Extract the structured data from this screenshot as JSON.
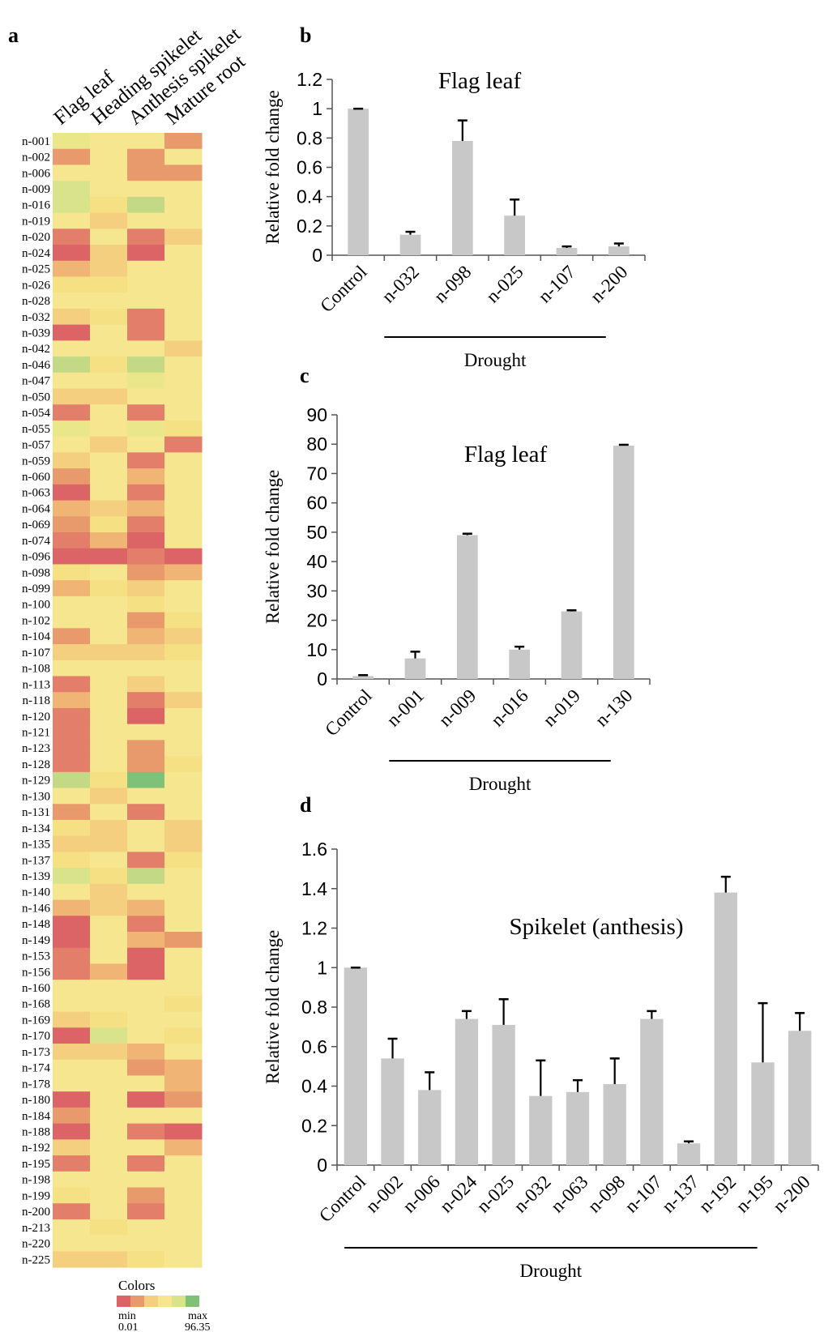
{
  "panels": {
    "a": "a",
    "b": "b",
    "c": "c",
    "d": "d"
  },
  "heatmap": {
    "columns": [
      "Flag leaf",
      "Heading spikelet",
      "Anthesis spikelet",
      "Mature root"
    ],
    "palette": [
      "#f6e68f",
      "#f5e084",
      "#f3cf7f",
      "#f0b575",
      "#e99a6c",
      "#e37e6a",
      "#dc6366",
      "#e9e78a",
      "#d9e38c",
      "#c4d985",
      "#7fc178"
    ],
    "rows": [
      {
        "label": "n-001",
        "v": [
          7,
          0,
          0,
          4
        ]
      },
      {
        "label": "n-002",
        "v": [
          4,
          0,
          4,
          0
        ]
      },
      {
        "label": "n-006",
        "v": [
          0,
          0,
          4,
          4
        ]
      },
      {
        "label": "n-009",
        "v": [
          8,
          0,
          0,
          0
        ]
      },
      {
        "label": "n-016",
        "v": [
          8,
          1,
          9,
          0
        ]
      },
      {
        "label": "n-019",
        "v": [
          0,
          2,
          0,
          0
        ]
      },
      {
        "label": "n-020",
        "v": [
          5,
          0,
          5,
          2
        ]
      },
      {
        "label": "n-024",
        "v": [
          6,
          2,
          6,
          0
        ]
      },
      {
        "label": "n-025",
        "v": [
          3,
          2,
          0,
          0
        ]
      },
      {
        "label": "n-026",
        "v": [
          1,
          1,
          0,
          0
        ]
      },
      {
        "label": "n-028",
        "v": [
          0,
          0,
          0,
          0
        ]
      },
      {
        "label": "n-032",
        "v": [
          2,
          1,
          5,
          0
        ]
      },
      {
        "label": "n-039",
        "v": [
          6,
          0,
          5,
          0
        ]
      },
      {
        "label": "n-042",
        "v": [
          0,
          0,
          0,
          2
        ]
      },
      {
        "label": "n-046",
        "v": [
          9,
          1,
          9,
          0
        ]
      },
      {
        "label": "n-047",
        "v": [
          0,
          0,
          7,
          0
        ]
      },
      {
        "label": "n-050",
        "v": [
          2,
          2,
          0,
          0
        ]
      },
      {
        "label": "n-054",
        "v": [
          5,
          0,
          5,
          0
        ]
      },
      {
        "label": "n-055",
        "v": [
          7,
          0,
          7,
          1
        ]
      },
      {
        "label": "n-057",
        "v": [
          0,
          2,
          0,
          5
        ]
      },
      {
        "label": "n-059",
        "v": [
          2,
          0,
          5,
          0
        ]
      },
      {
        "label": "n-060",
        "v": [
          4,
          0,
          3,
          0
        ]
      },
      {
        "label": "n-063",
        "v": [
          6,
          0,
          5,
          0
        ]
      },
      {
        "label": "n-064",
        "v": [
          3,
          2,
          3,
          0
        ]
      },
      {
        "label": "n-069",
        "v": [
          4,
          1,
          5,
          0
        ]
      },
      {
        "label": "n-074",
        "v": [
          5,
          3,
          6,
          0
        ]
      },
      {
        "label": "n-096",
        "v": [
          6,
          6,
          5,
          6
        ]
      },
      {
        "label": "n-098",
        "v": [
          1,
          0,
          4,
          3
        ]
      },
      {
        "label": "n-099",
        "v": [
          3,
          1,
          2,
          0
        ]
      },
      {
        "label": "n-100",
        "v": [
          0,
          0,
          1,
          0
        ]
      },
      {
        "label": "n-102",
        "v": [
          0,
          0,
          4,
          1
        ]
      },
      {
        "label": "n-104",
        "v": [
          4,
          0,
          3,
          2
        ]
      },
      {
        "label": "n-107",
        "v": [
          2,
          2,
          2,
          1
        ]
      },
      {
        "label": "n-108",
        "v": [
          0,
          0,
          0,
          0
        ]
      },
      {
        "label": "n-113",
        "v": [
          5,
          0,
          2,
          0
        ]
      },
      {
        "label": "n-118",
        "v": [
          3,
          0,
          5,
          2
        ]
      },
      {
        "label": "n-120",
        "v": [
          5,
          0,
          6,
          0
        ]
      },
      {
        "label": "n-121",
        "v": [
          5,
          0,
          0,
          0
        ]
      },
      {
        "label": "n-123",
        "v": [
          5,
          0,
          4,
          0
        ]
      },
      {
        "label": "n-128",
        "v": [
          5,
          0,
          4,
          1
        ]
      },
      {
        "label": "n-129",
        "v": [
          9,
          1,
          10,
          0
        ]
      },
      {
        "label": "n-130",
        "v": [
          0,
          2,
          0,
          0
        ]
      },
      {
        "label": "n-131",
        "v": [
          4,
          0,
          5,
          0
        ]
      },
      {
        "label": "n-134",
        "v": [
          1,
          2,
          0,
          2
        ]
      },
      {
        "label": "n-135",
        "v": [
          2,
          2,
          0,
          2
        ]
      },
      {
        "label": "n-137",
        "v": [
          1,
          0,
          5,
          1
        ]
      },
      {
        "label": "n-139",
        "v": [
          8,
          1,
          9,
          0
        ]
      },
      {
        "label": "n-140",
        "v": [
          0,
          2,
          0,
          0
        ]
      },
      {
        "label": "n-146",
        "v": [
          3,
          2,
          3,
          0
        ]
      },
      {
        "label": "n-148",
        "v": [
          6,
          0,
          5,
          0
        ]
      },
      {
        "label": "n-149",
        "v": [
          6,
          0,
          3,
          4
        ]
      },
      {
        "label": "n-153",
        "v": [
          5,
          0,
          6,
          0
        ]
      },
      {
        "label": "n-156",
        "v": [
          5,
          3,
          6,
          0
        ]
      },
      {
        "label": "n-160",
        "v": [
          0,
          0,
          0,
          0
        ]
      },
      {
        "label": "n-168",
        "v": [
          0,
          0,
          0,
          1
        ]
      },
      {
        "label": "n-169",
        "v": [
          2,
          1,
          0,
          0
        ]
      },
      {
        "label": "n-170",
        "v": [
          6,
          8,
          0,
          1
        ]
      },
      {
        "label": "n-173",
        "v": [
          2,
          2,
          3,
          0
        ]
      },
      {
        "label": "n-174",
        "v": [
          0,
          0,
          4,
          3
        ]
      },
      {
        "label": "n-178",
        "v": [
          0,
          0,
          0,
          3
        ]
      },
      {
        "label": "n-180",
        "v": [
          6,
          0,
          6,
          4
        ]
      },
      {
        "label": "n-184",
        "v": [
          4,
          0,
          0,
          0
        ]
      },
      {
        "label": "n-188",
        "v": [
          6,
          0,
          5,
          6
        ]
      },
      {
        "label": "n-192",
        "v": [
          2,
          0,
          0,
          3
        ]
      },
      {
        "label": "n-195",
        "v": [
          5,
          0,
          5,
          0
        ]
      },
      {
        "label": "n-198",
        "v": [
          0,
          0,
          0,
          0
        ]
      },
      {
        "label": "n-199",
        "v": [
          1,
          0,
          4,
          0
        ]
      },
      {
        "label": "n-200",
        "v": [
          5,
          0,
          5,
          0
        ]
      },
      {
        "label": "n-213",
        "v": [
          0,
          1,
          0,
          0
        ]
      },
      {
        "label": "n-220",
        "v": [
          0,
          0,
          0,
          0
        ]
      },
      {
        "label": "n-225",
        "v": [
          2,
          2,
          1,
          0
        ]
      }
    ],
    "legend": {
      "title": "Colors",
      "swatches": [
        "#dc6366",
        "#e99a6c",
        "#f3cf7f",
        "#f6e68f",
        "#d9e38c",
        "#7fc178"
      ],
      "min_label": "min",
      "min_value": "0.01",
      "max_label": "max",
      "max_value": "96.35"
    }
  },
  "chart_data": [
    {
      "type": "bar",
      "panel": "b",
      "title": "Flag leaf",
      "ylabel": "Relative fold change",
      "group_label": "Drought",
      "categories": [
        "Control",
        "n-032",
        "n-098",
        "n-025",
        "n-107",
        "n-200"
      ],
      "values": [
        1.0,
        0.14,
        0.78,
        0.27,
        0.05,
        0.06
      ],
      "errors": [
        0.0,
        0.02,
        0.14,
        0.11,
        0.01,
        0.02
      ],
      "ylim": [
        0,
        1.2
      ],
      "yticks": [
        "0",
        "0.2",
        "0.4",
        "0.6",
        "0.8",
        "1",
        "1.2"
      ],
      "bar_color": "#c8c8c8"
    },
    {
      "type": "bar",
      "panel": "c",
      "title": "Flag leaf",
      "ylabel": "Relative fold change",
      "group_label": "Drought",
      "categories": [
        "Control",
        "n-001",
        "n-009",
        "n-016",
        "n-019",
        "n-130"
      ],
      "values": [
        1,
        7,
        49,
        10,
        23,
        79.5
      ],
      "errors": [
        0.3,
        2.3,
        0.5,
        1.0,
        0.4,
        0.3
      ],
      "ylim": [
        0,
        90
      ],
      "yticks": [
        "0",
        "10",
        "20",
        "30",
        "40",
        "50",
        "60",
        "70",
        "80",
        "90"
      ],
      "bar_color": "#c8c8c8"
    },
    {
      "type": "bar",
      "panel": "d",
      "title": "Spikelet (anthesis)",
      "ylabel": "Relative fold change",
      "group_label": "Drought",
      "categories": [
        "Control",
        "n-002",
        "n-006",
        "n-024",
        "n-025",
        "n-032",
        "n-063",
        "n-098",
        "n-107",
        "n-137",
        "n-192",
        "n-195",
        "n-200"
      ],
      "values": [
        1.0,
        0.54,
        0.38,
        0.74,
        0.71,
        0.35,
        0.37,
        0.41,
        0.74,
        0.11,
        1.38,
        0.52,
        0.68
      ],
      "errors": [
        0.0,
        0.1,
        0.09,
        0.04,
        0.13,
        0.18,
        0.06,
        0.13,
        0.04,
        0.01,
        0.08,
        0.3,
        0.09
      ],
      "ylim": [
        0,
        1.6
      ],
      "yticks": [
        "0",
        "0.2",
        "0.4",
        "0.6",
        "0.8",
        "1",
        "1.2",
        "1.4",
        "1.6"
      ],
      "bar_color": "#c8c8c8"
    }
  ]
}
